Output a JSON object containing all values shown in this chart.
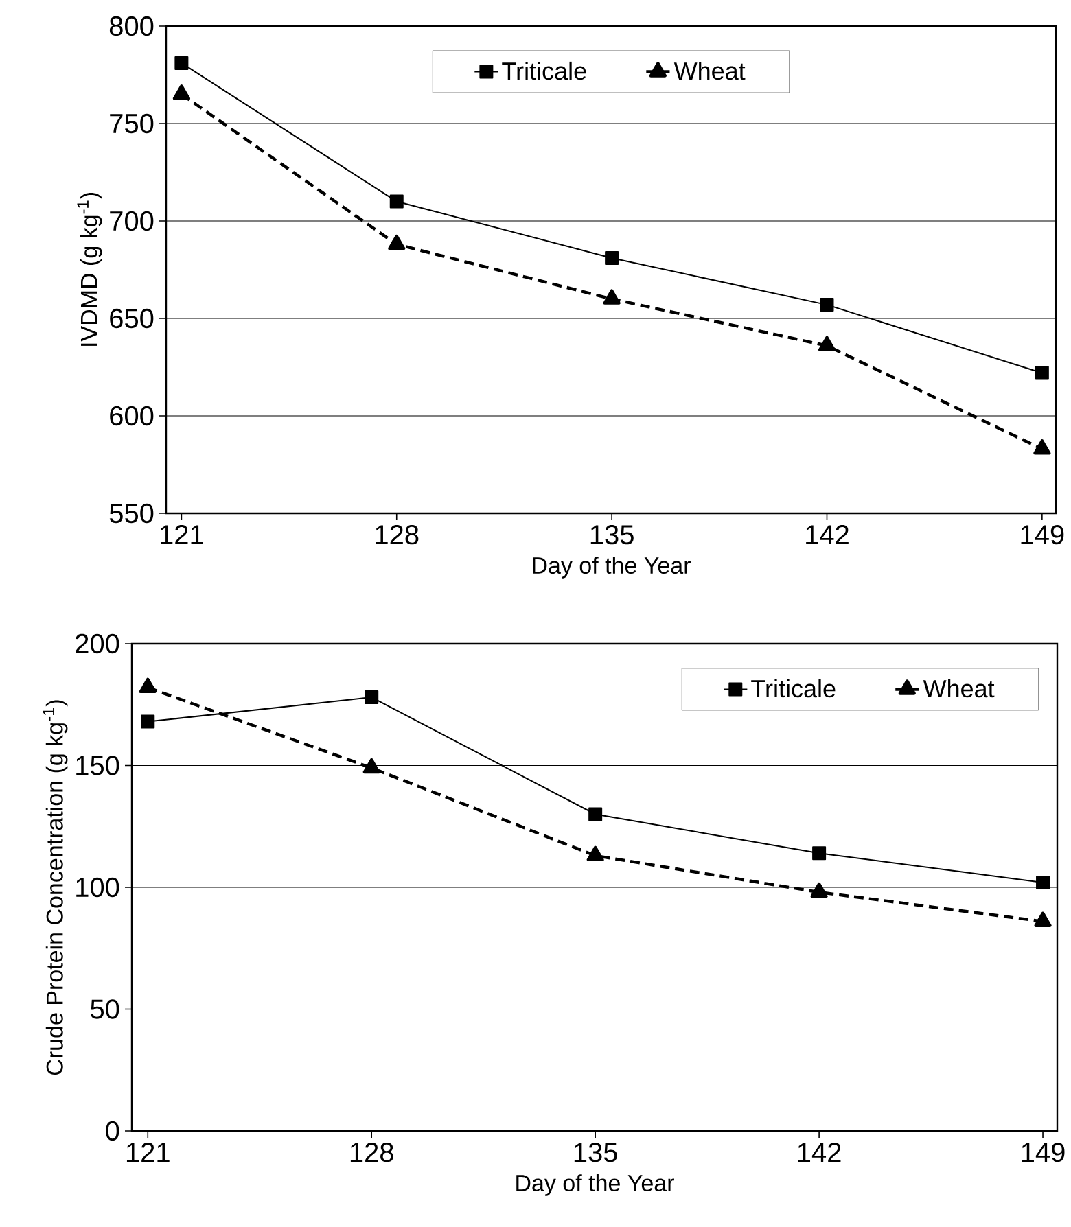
{
  "chart_data": [
    {
      "type": "line",
      "xlabel": "Day of the Year",
      "ylabel": "IVDMD (g kg$^{-1}$)",
      "x": [
        121,
        128,
        135,
        142,
        149
      ],
      "xlim": [
        120.5,
        149.45
      ],
      "xticks": [
        121,
        128,
        135,
        142,
        149
      ],
      "ylim": [
        550,
        800
      ],
      "yticks": [
        550,
        600,
        650,
        700,
        750,
        800
      ],
      "grid": "y",
      "legend": "top",
      "series": [
        {
          "name": "Triticale",
          "color": "#000000",
          "marker": "square",
          "line_style": "solid",
          "values": [
            781,
            710,
            681,
            657,
            622
          ]
        },
        {
          "name": "Wheat",
          "color": "#000000",
          "marker": "triangle",
          "line_style": "dashed",
          "values": [
            765,
            688,
            660,
            636,
            583
          ]
        }
      ]
    },
    {
      "type": "line",
      "xlabel": "Day of the Year",
      "ylabel": "Crude Protein Concentration (g kg$^{-1}$)",
      "x": [
        121,
        128,
        135,
        142,
        149
      ],
      "xlim": [
        120.5,
        149.45
      ],
      "xticks": [
        121,
        128,
        135,
        142,
        149
      ],
      "ylim": [
        0,
        200
      ],
      "yticks": [
        0,
        50,
        100,
        150,
        200
      ],
      "grid": "y",
      "legend": "top right",
      "series": [
        {
          "name": "Triticale",
          "color": "#000000",
          "marker": "square",
          "line_style": "solid",
          "values": [
            168,
            178,
            130,
            114,
            102
          ]
        },
        {
          "name": "Wheat",
          "color": "#000000",
          "marker": "triangle",
          "line_style": "dashed",
          "values": [
            182,
            149,
            113,
            98,
            86
          ]
        }
      ]
    }
  ]
}
